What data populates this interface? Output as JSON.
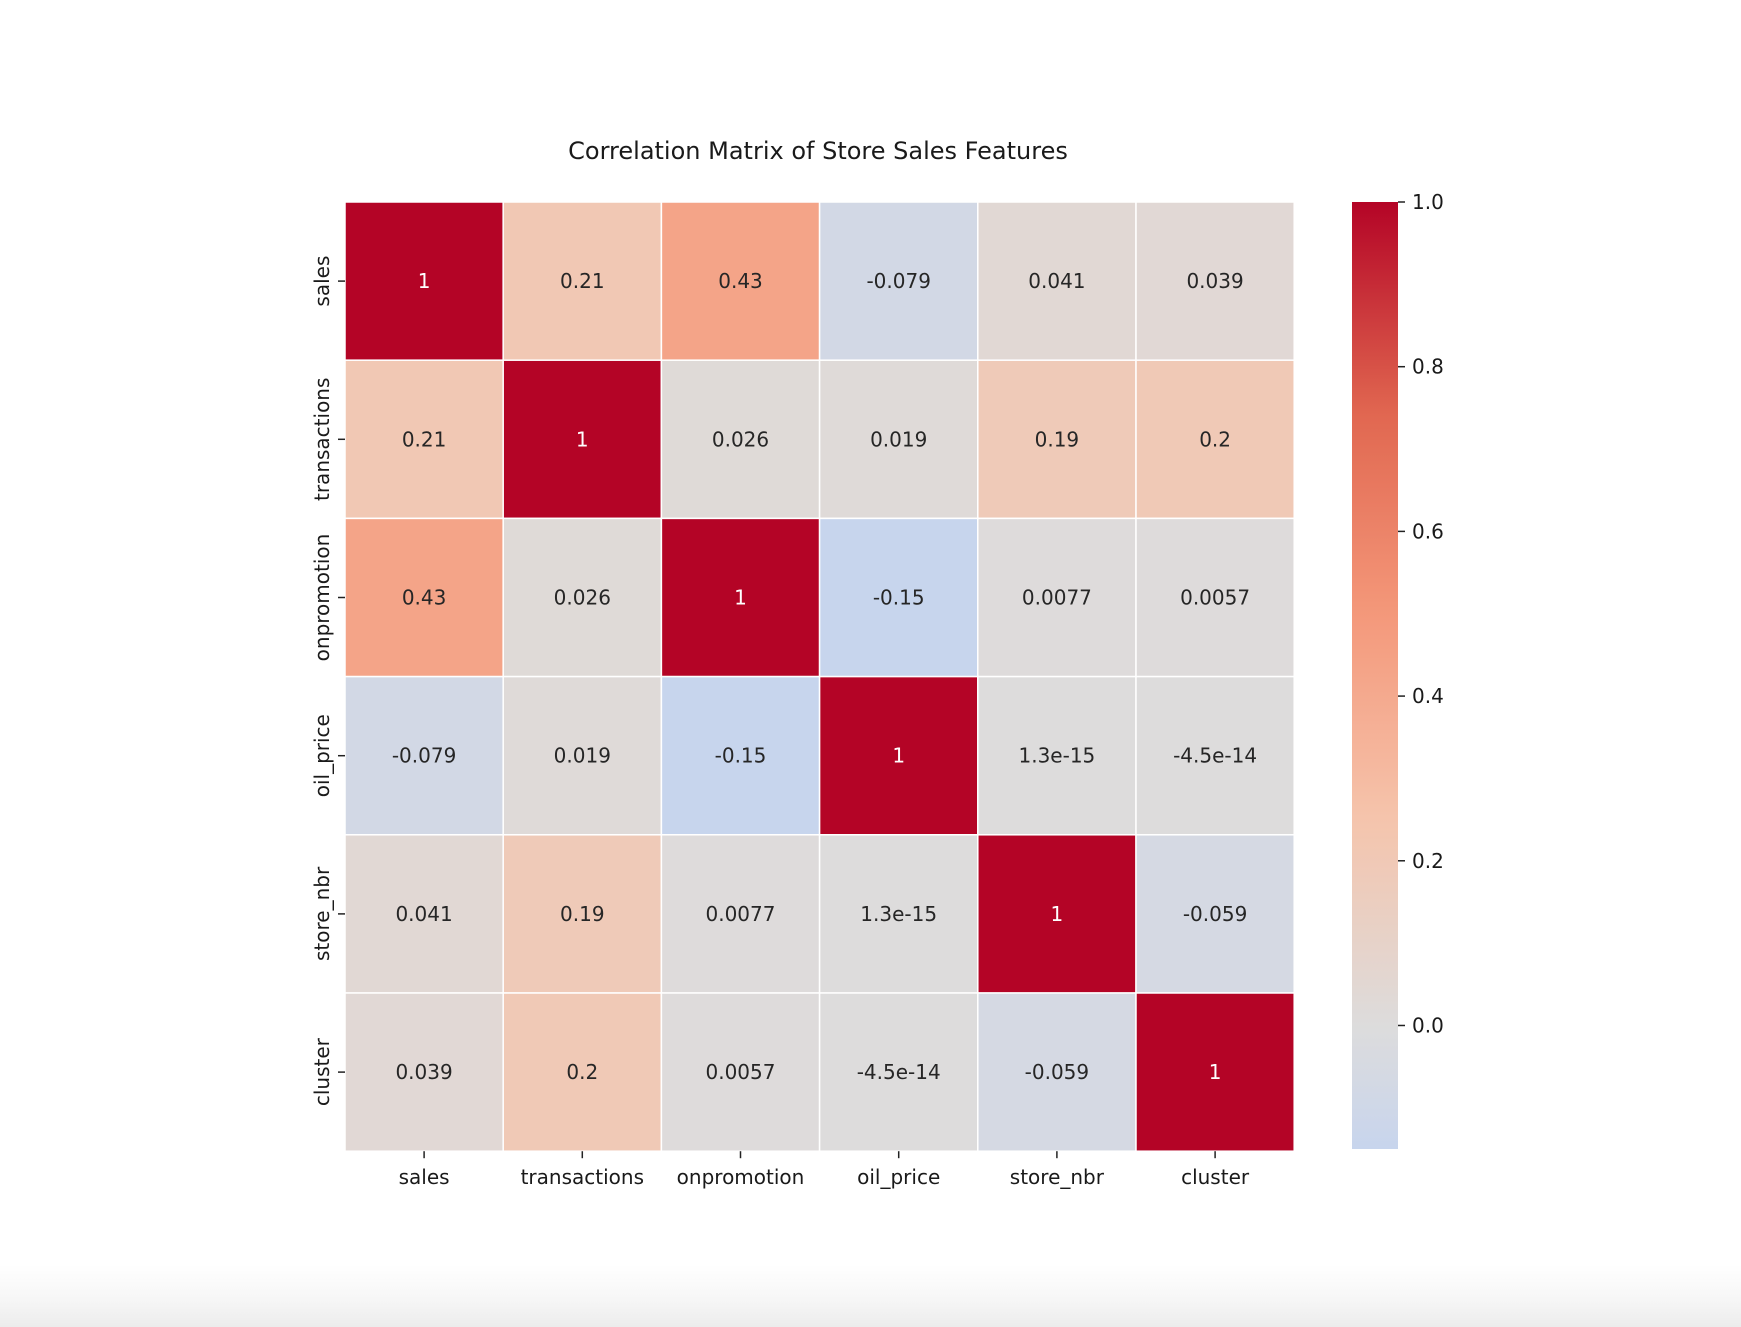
{
  "chart_data": {
    "type": "heatmap",
    "title": "Correlation Matrix of Store Sales Features",
    "variables": [
      "sales",
      "transactions",
      "onpromotion",
      "oil_price",
      "store_nbr",
      "cluster"
    ],
    "values": [
      [
        1,
        0.21,
        0.43,
        -0.079,
        0.041,
        0.039
      ],
      [
        0.21,
        1,
        0.026,
        0.019,
        0.19,
        0.2
      ],
      [
        0.43,
        0.026,
        1,
        -0.15,
        0.0077,
        0.0057
      ],
      [
        -0.079,
        0.019,
        -0.15,
        1,
        1.3e-15,
        -4.5e-14
      ],
      [
        0.041,
        0.19,
        0.0077,
        1.3e-15,
        1,
        -0.059
      ],
      [
        0.039,
        0.2,
        0.0057,
        -4.5e-14,
        -0.059,
        1
      ]
    ],
    "annotations": [
      [
        "1",
        "0.21",
        "0.43",
        "-0.079",
        "0.041",
        "0.039"
      ],
      [
        "0.21",
        "1",
        "0.026",
        "0.019",
        "0.19",
        "0.2"
      ],
      [
        "0.43",
        "0.026",
        "1",
        "-0.15",
        "0.0077",
        "0.0057"
      ],
      [
        "-0.079",
        "0.019",
        "-0.15",
        "1",
        "1.3e-15",
        "-4.5e-14"
      ],
      [
        "0.041",
        "0.19",
        "0.0077",
        "1.3e-15",
        "1",
        "-0.059"
      ],
      [
        "0.039",
        "0.2",
        "0.0057",
        "-4.5e-14",
        "-0.059",
        "1"
      ]
    ],
    "colormap": "coolwarm",
    "colormap_center": 0,
    "vmin": -0.15,
    "vmax": 1.0,
    "colorbar_ticks": [
      0.0,
      0.2,
      0.4,
      0.6,
      0.8,
      1.0
    ],
    "colorbar_tick_labels": [
      "0.0",
      "0.2",
      "0.4",
      "0.6",
      "0.8",
      "1.0"
    ],
    "colors": {
      "high": "#b40426",
      "mid": "#dddcdc",
      "low": "#3b4cc0",
      "cell_border": "#ffffff"
    },
    "annotation_text_dark": "#262626",
    "annotation_text_light": "#ffffff"
  }
}
